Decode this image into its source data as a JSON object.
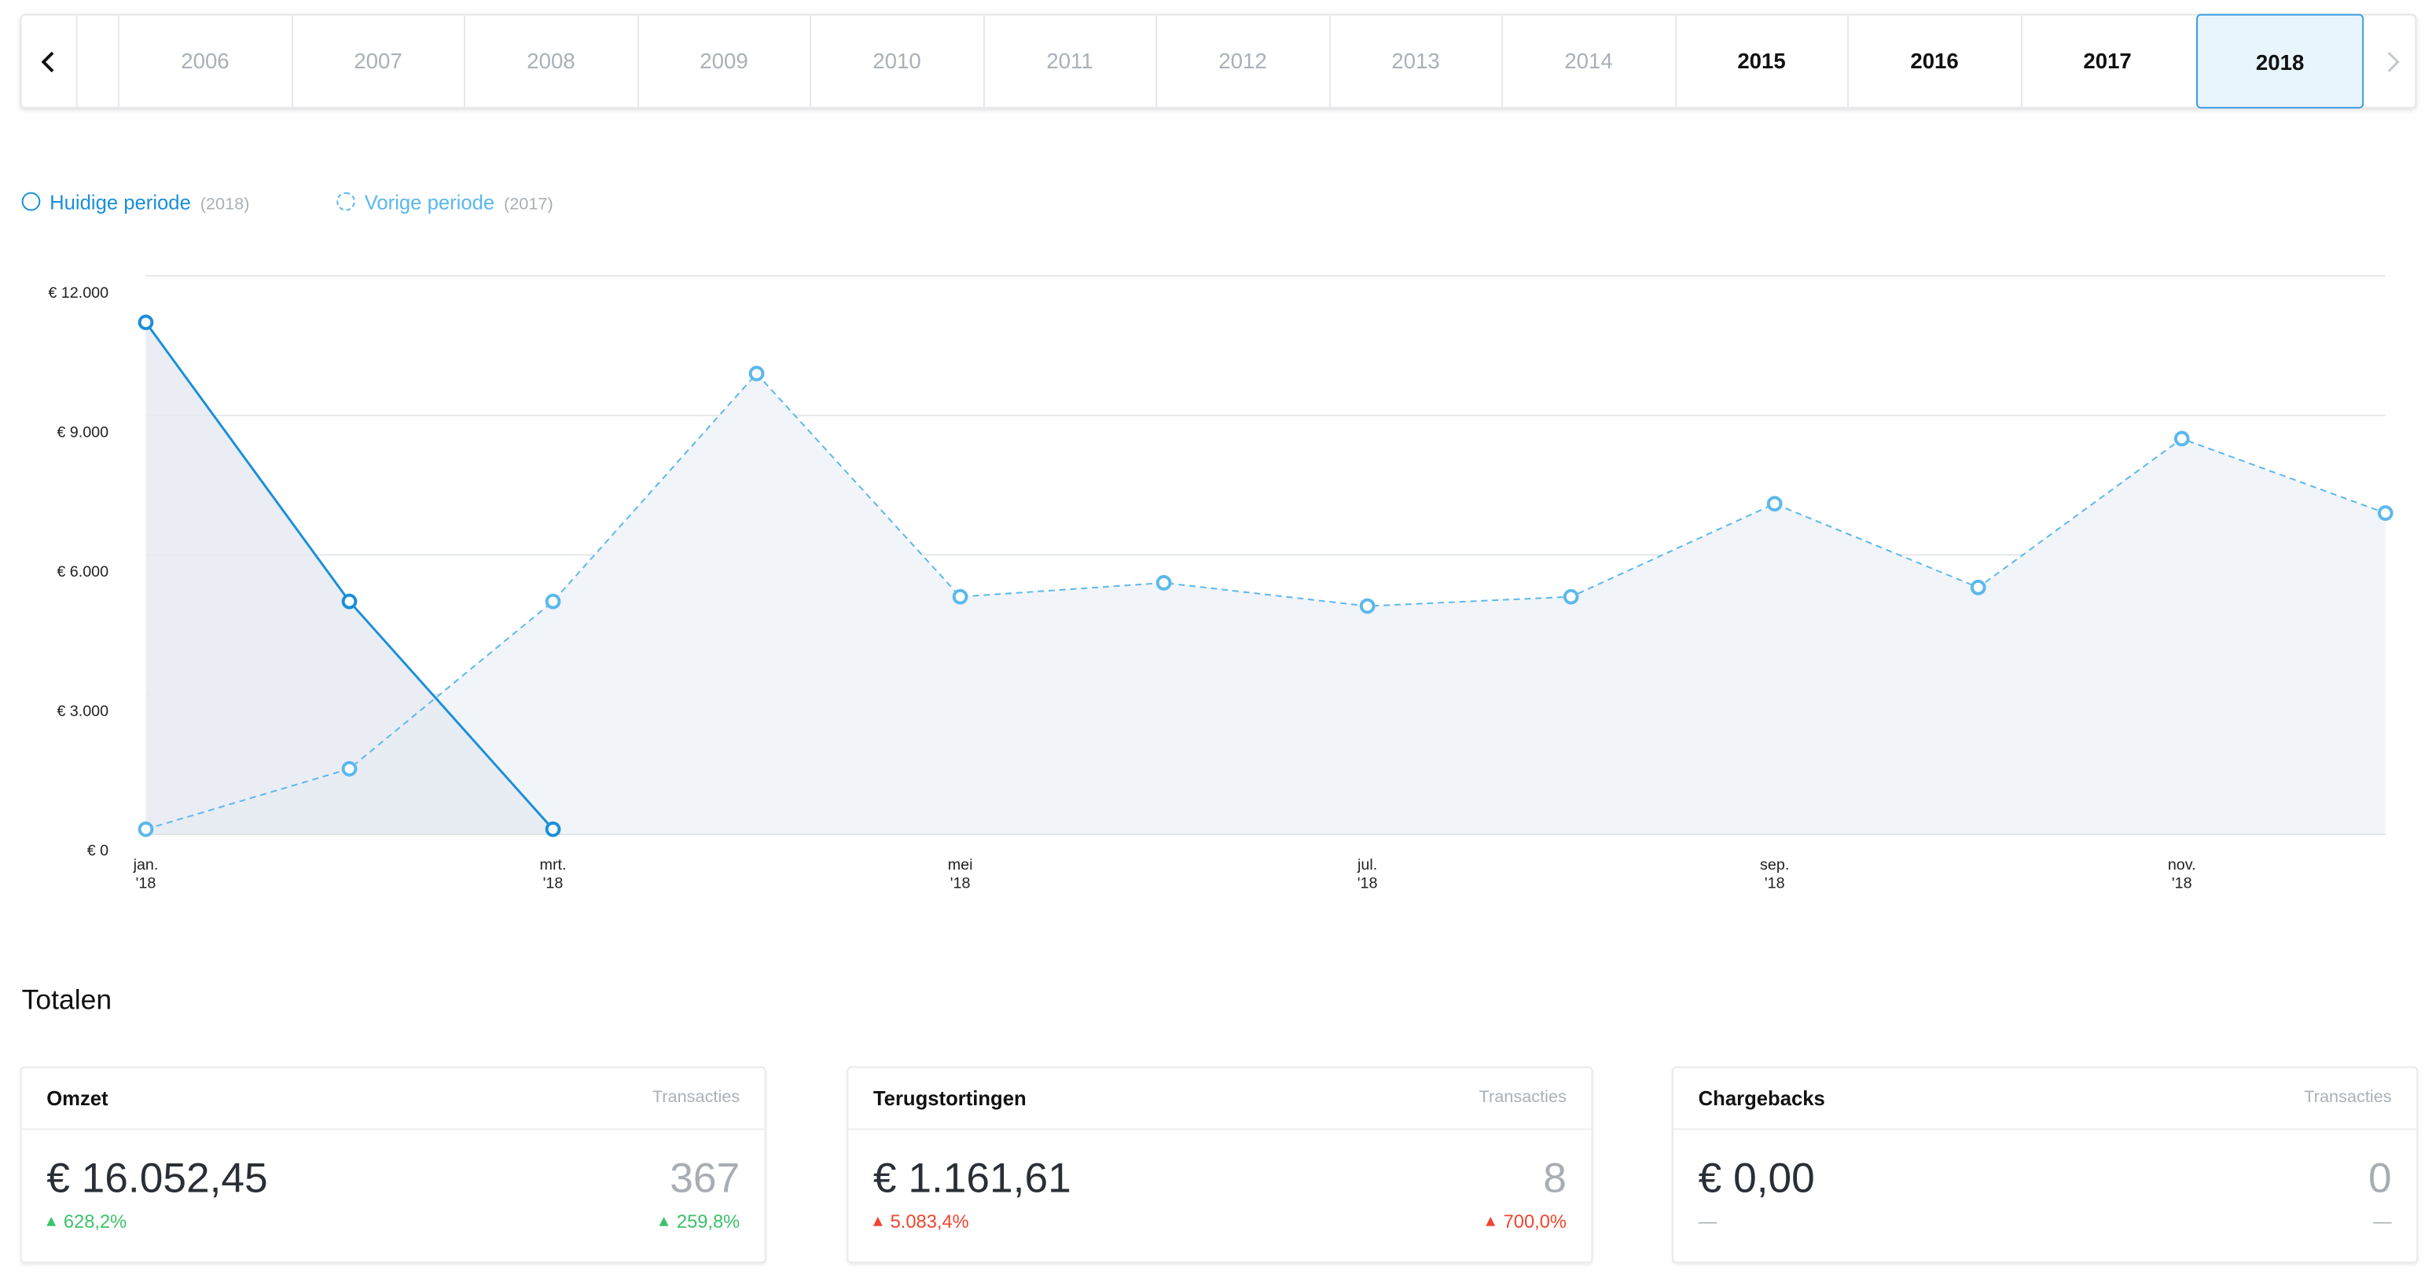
{
  "year_tabs": [
    {
      "label": "2006",
      "enabled": false
    },
    {
      "label": "2007",
      "enabled": false
    },
    {
      "label": "2008",
      "enabled": false
    },
    {
      "label": "2009",
      "enabled": false
    },
    {
      "label": "2010",
      "enabled": false
    },
    {
      "label": "2011",
      "enabled": false
    },
    {
      "label": "2012",
      "enabled": false
    },
    {
      "label": "2013",
      "enabled": false
    },
    {
      "label": "2014",
      "enabled": false
    },
    {
      "label": "2015",
      "enabled": true
    },
    {
      "label": "2016",
      "enabled": true
    },
    {
      "label": "2017",
      "enabled": true
    },
    {
      "label": "2018",
      "enabled": true,
      "selected": true
    }
  ],
  "chart_data": {
    "type": "line",
    "categories": [
      "jan.\n'18",
      null,
      "mrt.\n'18",
      null,
      "mei\n'18",
      null,
      "jul.\n'18",
      null,
      "sep.\n'18",
      null,
      "nov.\n'18",
      null
    ],
    "series": [
      {
        "name": "Huidige periode",
        "period": "(2018)",
        "color": "#1a8fd8",
        "dashed": false,
        "values": [
          11000,
          5000,
          100,
          null,
          null,
          null,
          null,
          null,
          null,
          null,
          null,
          null
        ]
      },
      {
        "name": "Vorige periode",
        "period": "(2017)",
        "color": "#5bb8ec",
        "dashed": true,
        "values": [
          100,
          1400,
          5000,
          9900,
          5100,
          5400,
          4900,
          5100,
          7100,
          5300,
          8500,
          6900
        ]
      }
    ],
    "ylim": [
      0,
      12000
    ],
    "yticks": [
      {
        "value": 0,
        "label": "€ 0"
      },
      {
        "value": 3000,
        "label": "€ 3.000"
      },
      {
        "value": 6000,
        "label": "€ 6.000"
      },
      {
        "value": 9000,
        "label": "€ 9.000"
      },
      {
        "value": 12000,
        "label": "€ 12.000"
      }
    ],
    "grid": true
  },
  "totals": {
    "title": "Totalen",
    "cards": [
      {
        "title": "Omzet",
        "count_label": "Transacties",
        "amount": "€ 16.052,45",
        "count": "367",
        "amount_change": "628,2%",
        "count_change": "259,8%",
        "change_color": "#3cc26a"
      },
      {
        "title": "Terugstortingen",
        "count_label": "Transacties",
        "amount": "€ 1.161,61",
        "count": "8",
        "amount_change": "5.083,4%",
        "count_change": "700,0%",
        "change_color": "#f0452e"
      },
      {
        "title": "Chargebacks",
        "count_label": "Transacties",
        "amount": "€ 0,00",
        "count": "0",
        "amount_change": "—",
        "count_change": "—",
        "change_color": "#aab0b8"
      }
    ]
  }
}
